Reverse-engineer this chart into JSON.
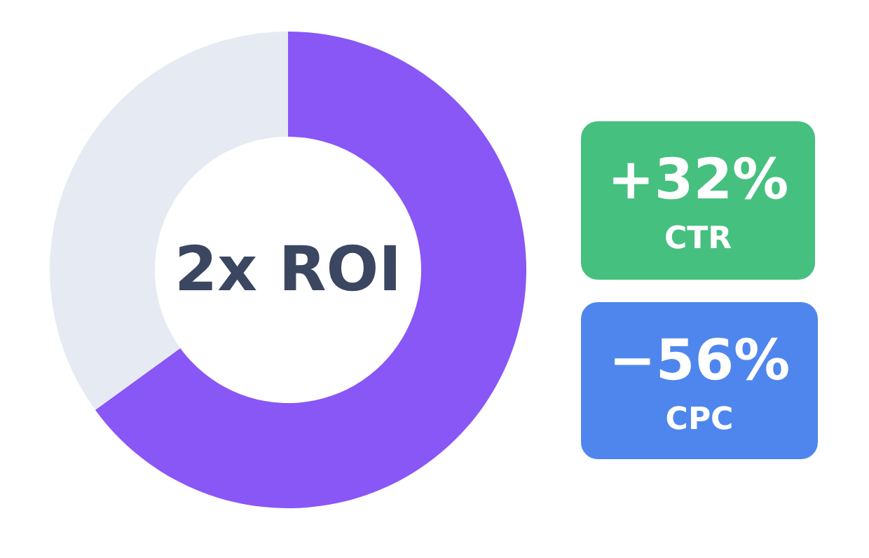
{
  "chart_data": [
    {
      "type": "donut",
      "categories": [
        null,
        null
      ],
      "values": [
        65,
        35
      ],
      "colors": [
        "#8857f5",
        "#e6eaf2"
      ],
      "annotations": [
        "2x ROI"
      ]
    },
    {
      "type": "other",
      "annotations": [
        "+32%",
        "CTR",
        "−56%",
        "CPC"
      ],
      "colors": [
        "#45c07f",
        "#4f86ee"
      ]
    }
  ]
}
